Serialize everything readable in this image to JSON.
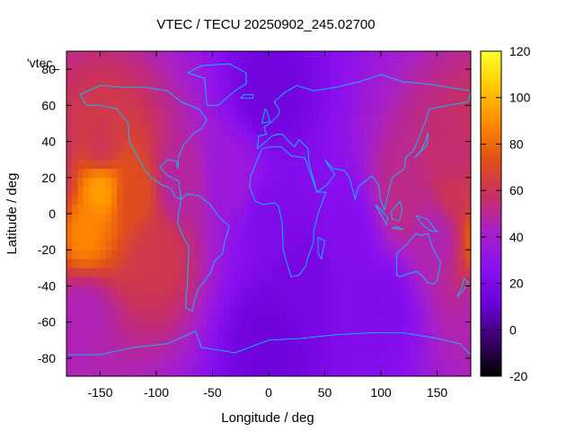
{
  "chart_data": {
    "type": "heatmap",
    "title": "VTEC / TECU 20250902_245.02700",
    "xlabel": "Longitude / deg",
    "ylabel": "Latitude / deg",
    "xlim": [
      -180,
      180
    ],
    "ylim": [
      -90,
      90
    ],
    "xticks": [
      -150,
      -100,
      -50,
      0,
      50,
      100,
      150
    ],
    "yticks": [
      -80,
      -60,
      -40,
      -20,
      0,
      20,
      40,
      60,
      80
    ],
    "legend_label": "'vtec_",
    "colorbar": {
      "range": [
        -20,
        120
      ],
      "ticks": [
        -20,
        0,
        20,
        40,
        60,
        80,
        100,
        120
      ],
      "palette": [
        "#000000",
        "#3a006a",
        "#6a00d8",
        "#8a10f0",
        "#a820c8",
        "#c83060",
        "#e05018",
        "#ff8a00",
        "#ffc800",
        "#ffff30"
      ]
    },
    "grid_step_deg": 5,
    "field_points": [
      {
        "lon": -150,
        "lat": 15,
        "vtec": 95
      },
      {
        "lon": -165,
        "lat": -10,
        "vtec": 88
      },
      {
        "lon": -120,
        "lat": 10,
        "vtec": 72
      },
      {
        "lon": -100,
        "lat": -20,
        "vtec": 62
      },
      {
        "lon": -150,
        "lat": 35,
        "vtec": 60
      },
      {
        "lon": -80,
        "lat": 15,
        "vtec": 48
      },
      {
        "lon": -165,
        "lat": -55,
        "vtec": 45
      },
      {
        "lon": -30,
        "lat": 20,
        "vtec": 35
      },
      {
        "lon": 0,
        "lat": 0,
        "vtec": 22
      },
      {
        "lon": 30,
        "lat": -35,
        "vtec": 18
      },
      {
        "lon": 70,
        "lat": -10,
        "vtec": 24
      },
      {
        "lon": 120,
        "lat": 10,
        "vtec": 52
      },
      {
        "lon": 165,
        "lat": 10,
        "vtec": 60
      },
      {
        "lon": 165,
        "lat": 30,
        "vtec": 55
      },
      {
        "lon": 150,
        "lat": -10,
        "vtec": 45
      },
      {
        "lon": 100,
        "lat": -50,
        "vtec": 22
      },
      {
        "lon": 0,
        "lat": 65,
        "vtec": 15
      },
      {
        "lon": 0,
        "lat": -70,
        "vtec": 14
      }
    ],
    "background_vtec": 22,
    "coastline_color": "#00c8ff"
  }
}
